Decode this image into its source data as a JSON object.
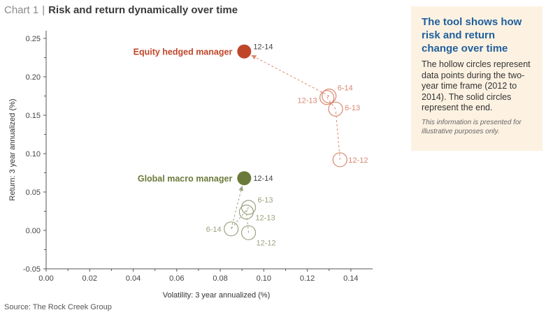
{
  "header": {
    "chart_number": "Chart 1",
    "separator": "|",
    "title": "Risk and return dynamically over time"
  },
  "source": "Source: The Rock Creek Group",
  "note": {
    "title": "The tool shows how risk and return change over time",
    "body": "The hollow circles represent data points during the two-year time frame (2012 to 2014). The solid circles represent the end.",
    "disclaimer": "This information is presented for illustrative purposes only."
  },
  "colors": {
    "equity": "#c0462a",
    "equity_light": "#d9876f",
    "macro": "#6b7a3a",
    "macro_light": "#9aa380",
    "axis": "#555555",
    "note_bg": "#fdf2e2",
    "note_title": "#1f5f9c"
  },
  "chart_data": {
    "type": "scatter",
    "xlabel": "Volatility: 3 year annualized (%)",
    "ylabel": "Return: 3 year annualized (%)",
    "xlim": [
      0,
      0.15
    ],
    "ylim": [
      -0.05,
      0.26
    ],
    "xticks": [
      "0.00",
      "0.02",
      "0.04",
      "0.06",
      "0.08",
      "0.10",
      "0.12",
      "0.14"
    ],
    "yticks": [
      "0.25",
      "0.20",
      "0.15",
      "0.10",
      "0.05",
      "0.00",
      "-0.05"
    ],
    "grid": false,
    "series": [
      {
        "name": "Equity hedged manager",
        "points": [
          {
            "label": "12-12",
            "x": 0.135,
            "y": 0.092,
            "filled": false
          },
          {
            "label": "6-13",
            "x": 0.133,
            "y": 0.158,
            "filled": false
          },
          {
            "label": "12-13",
            "x": 0.129,
            "y": 0.173,
            "filled": false
          },
          {
            "label": "6-14",
            "x": 0.13,
            "y": 0.175,
            "filled": false
          },
          {
            "label": "12-14",
            "x": 0.091,
            "y": 0.233,
            "filled": true
          }
        ]
      },
      {
        "name": "Global macro manager",
        "points": [
          {
            "label": "12-12",
            "x": 0.093,
            "y": -0.003,
            "filled": false
          },
          {
            "label": "12-13",
            "x": 0.092,
            "y": 0.024,
            "filled": false
          },
          {
            "label": "6-13",
            "x": 0.093,
            "y": 0.03,
            "filled": false
          },
          {
            "label": "6-14",
            "x": 0.085,
            "y": 0.002,
            "filled": false
          },
          {
            "label": "12-14",
            "x": 0.091,
            "y": 0.068,
            "filled": true
          }
        ]
      }
    ]
  }
}
